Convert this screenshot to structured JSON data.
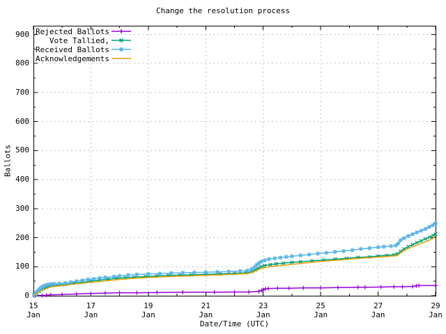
{
  "window": {
    "background": "#ffffff",
    "text_color": "#000000",
    "border_color": "#000000",
    "grid_color": "#c0c0c0"
  },
  "chart_data": {
    "type": "line",
    "title": "Change the resolution process",
    "xlabel": "Date/Time (UTC)",
    "ylabel": "Ballots",
    "legend_position": "top-left",
    "grid": "dashed",
    "x_axis": {
      "unit": "day of January",
      "min": 15,
      "max": 29,
      "major_ticks": [
        {
          "day": 15,
          "label": "15",
          "sub": "Jan"
        },
        {
          "day": 17,
          "label": "17",
          "sub": "Jan"
        },
        {
          "day": 19,
          "label": "19",
          "sub": "Jan"
        },
        {
          "day": 21,
          "label": "21",
          "sub": "Jan"
        },
        {
          "day": 23,
          "label": "23",
          "sub": "Jan"
        },
        {
          "day": 25,
          "label": "25",
          "sub": "Jan"
        },
        {
          "day": 27,
          "label": "27",
          "sub": "Jan"
        },
        {
          "day": 29,
          "label": "29",
          "sub": "Jan"
        }
      ],
      "minor_tick_days": [
        16,
        18,
        20,
        22,
        24,
        26,
        28
      ]
    },
    "y_axis": {
      "min": 0,
      "max": 930,
      "major_ticks": [
        0,
        100,
        200,
        300,
        400,
        500,
        600,
        700,
        800,
        900
      ],
      "minor_step": 50
    },
    "series": [
      {
        "name": "Rejected Ballots",
        "color": "#9400d3",
        "marker": "plus",
        "points": [
          [
            15.05,
            0
          ],
          [
            15.3,
            1
          ],
          [
            15.45,
            2
          ],
          [
            15.6,
            3
          ],
          [
            16.0,
            4
          ],
          [
            16.5,
            6
          ],
          [
            17.0,
            8
          ],
          [
            17.5,
            9
          ],
          [
            18.0,
            10
          ],
          [
            18.6,
            10
          ],
          [
            19.3,
            11
          ],
          [
            20.2,
            12
          ],
          [
            21.3,
            12
          ],
          [
            22.0,
            13
          ],
          [
            22.5,
            13
          ],
          [
            22.85,
            15
          ],
          [
            22.95,
            18
          ],
          [
            23.0,
            21
          ],
          [
            23.08,
            24
          ],
          [
            23.18,
            25
          ],
          [
            23.5,
            26
          ],
          [
            23.9,
            26
          ],
          [
            24.4,
            27
          ],
          [
            25.0,
            27
          ],
          [
            25.6,
            28
          ],
          [
            26.3,
            29
          ],
          [
            26.55,
            29
          ],
          [
            27.1,
            30
          ],
          [
            27.55,
            31
          ],
          [
            27.85,
            31
          ],
          [
            28.2,
            32
          ],
          [
            28.33,
            34
          ],
          [
            28.42,
            35
          ],
          [
            29.0,
            35
          ]
        ]
      },
      {
        "name": "Vote Tallied,",
        "color": "#009e73",
        "marker": "cross",
        "points": [
          [
            15.03,
            1
          ],
          [
            15.08,
            4
          ],
          [
            15.13,
            9
          ],
          [
            15.2,
            15
          ],
          [
            15.28,
            20
          ],
          [
            15.36,
            25
          ],
          [
            15.45,
            29
          ],
          [
            15.55,
            33
          ],
          [
            15.68,
            35
          ],
          [
            15.85,
            37
          ],
          [
            16.1,
            39
          ],
          [
            16.4,
            43
          ],
          [
            16.7,
            47
          ],
          [
            17.0,
            50
          ],
          [
            17.3,
            54
          ],
          [
            17.6,
            57
          ],
          [
            17.9,
            60
          ],
          [
            18.2,
            62
          ],
          [
            18.5,
            64
          ],
          [
            18.9,
            66
          ],
          [
            19.3,
            68
          ],
          [
            19.7,
            70
          ],
          [
            20.1,
            71
          ],
          [
            20.5,
            72
          ],
          [
            21.0,
            74
          ],
          [
            21.5,
            75
          ],
          [
            22.0,
            77
          ],
          [
            22.4,
            79
          ],
          [
            22.6,
            83
          ],
          [
            22.72,
            89
          ],
          [
            22.82,
            95
          ],
          [
            22.92,
            100
          ],
          [
            23.05,
            104
          ],
          [
            23.25,
            107
          ],
          [
            23.45,
            110
          ],
          [
            23.7,
            112
          ],
          [
            24.0,
            115
          ],
          [
            24.3,
            117
          ],
          [
            24.7,
            120
          ],
          [
            25.1,
            123
          ],
          [
            25.5,
            126
          ],
          [
            25.9,
            129
          ],
          [
            26.3,
            132
          ],
          [
            26.7,
            134
          ],
          [
            27.0,
            137
          ],
          [
            27.3,
            139
          ],
          [
            27.55,
            141
          ],
          [
            27.68,
            145
          ],
          [
            27.78,
            153
          ],
          [
            27.9,
            161
          ],
          [
            28.05,
            169
          ],
          [
            28.2,
            176
          ],
          [
            28.35,
            183
          ],
          [
            28.5,
            189
          ],
          [
            28.65,
            196
          ],
          [
            28.8,
            202
          ],
          [
            28.92,
            208
          ],
          [
            29.0,
            212
          ]
        ]
      },
      {
        "name": "Received Ballots",
        "color": "#56b4e9",
        "marker": "star",
        "points": [
          [
            15.02,
            2
          ],
          [
            15.06,
            6
          ],
          [
            15.1,
            11
          ],
          [
            15.15,
            17
          ],
          [
            15.2,
            22
          ],
          [
            15.25,
            26
          ],
          [
            15.3,
            30
          ],
          [
            15.36,
            33
          ],
          [
            15.42,
            36
          ],
          [
            15.5,
            38
          ],
          [
            15.6,
            40
          ],
          [
            15.72,
            41
          ],
          [
            15.9,
            42
          ],
          [
            16.1,
            44
          ],
          [
            16.3,
            47
          ],
          [
            16.5,
            50
          ],
          [
            16.7,
            53
          ],
          [
            16.9,
            56
          ],
          [
            17.1,
            58
          ],
          [
            17.3,
            61
          ],
          [
            17.5,
            63
          ],
          [
            17.8,
            66
          ],
          [
            18.0,
            68
          ],
          [
            18.3,
            71
          ],
          [
            18.6,
            73
          ],
          [
            19.0,
            75
          ],
          [
            19.4,
            76
          ],
          [
            19.8,
            78
          ],
          [
            20.2,
            79
          ],
          [
            20.6,
            80
          ],
          [
            21.0,
            81
          ],
          [
            21.4,
            82
          ],
          [
            21.8,
            83
          ],
          [
            22.2,
            85
          ],
          [
            22.45,
            87
          ],
          [
            22.6,
            91
          ],
          [
            22.7,
            99
          ],
          [
            22.78,
            107
          ],
          [
            22.86,
            113
          ],
          [
            22.94,
            118
          ],
          [
            23.05,
            122
          ],
          [
            23.2,
            126
          ],
          [
            23.4,
            129
          ],
          [
            23.6,
            131
          ],
          [
            23.8,
            134
          ],
          [
            24.0,
            136
          ],
          [
            24.3,
            139
          ],
          [
            24.6,
            142
          ],
          [
            24.9,
            145
          ],
          [
            25.2,
            148
          ],
          [
            25.5,
            151
          ],
          [
            25.8,
            154
          ],
          [
            26.1,
            157
          ],
          [
            26.4,
            161
          ],
          [
            26.7,
            164
          ],
          [
            27.0,
            167
          ],
          [
            27.2,
            169
          ],
          [
            27.45,
            171
          ],
          [
            27.62,
            173
          ],
          [
            27.7,
            180
          ],
          [
            27.78,
            191
          ],
          [
            27.9,
            198
          ],
          [
            28.05,
            206
          ],
          [
            28.2,
            212
          ],
          [
            28.35,
            218
          ],
          [
            28.5,
            224
          ],
          [
            28.65,
            230
          ],
          [
            28.78,
            237
          ],
          [
            28.9,
            243
          ],
          [
            29.0,
            249
          ]
        ]
      },
      {
        "name": "Acknowledgements",
        "color": "#e69f00",
        "marker": "none",
        "points": [
          [
            15.0,
            0
          ],
          [
            15.15,
            11
          ],
          [
            15.3,
            19
          ],
          [
            15.5,
            27
          ],
          [
            15.7,
            32
          ],
          [
            16.0,
            35
          ],
          [
            16.5,
            41
          ],
          [
            17.0,
            46
          ],
          [
            17.5,
            51
          ],
          [
            18.0,
            56
          ],
          [
            18.5,
            60
          ],
          [
            19.0,
            63
          ],
          [
            19.5,
            65
          ],
          [
            20.0,
            67
          ],
          [
            20.5,
            69
          ],
          [
            21.0,
            70
          ],
          [
            21.5,
            72
          ],
          [
            22.0,
            74
          ],
          [
            22.5,
            77
          ],
          [
            22.7,
            84
          ],
          [
            22.9,
            93
          ],
          [
            23.1,
            98
          ],
          [
            23.5,
            103
          ],
          [
            24.0,
            108
          ],
          [
            24.5,
            113
          ],
          [
            25.0,
            118
          ],
          [
            25.5,
            122
          ],
          [
            26.0,
            126
          ],
          [
            26.5,
            130
          ],
          [
            27.0,
            133
          ],
          [
            27.4,
            136
          ],
          [
            27.65,
            138
          ],
          [
            27.78,
            148
          ],
          [
            27.95,
            158
          ],
          [
            28.15,
            167
          ],
          [
            28.35,
            175
          ],
          [
            28.55,
            182
          ],
          [
            28.75,
            190
          ],
          [
            28.9,
            197
          ],
          [
            29.0,
            204
          ]
        ]
      }
    ]
  }
}
